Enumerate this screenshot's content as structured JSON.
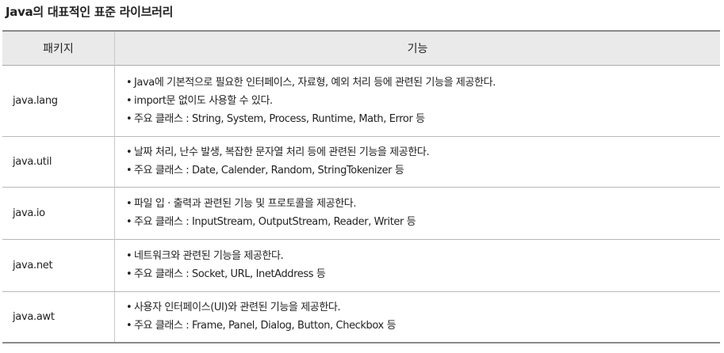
{
  "title": "Java의 대표적인 표준 라이브러리",
  "table": {
    "headers": [
      "패키지",
      "기능"
    ],
    "rows": [
      {
        "package": "java.lang",
        "lines": [
          "Java에 기본적으로 필요한 인터페이스, 자료형, 예외 처리 등에 관련된 기능을 제공한다.",
          "import문 없이도 사용할 수 있다.",
          "주요 클래스 : String, System, Process, Runtime, Math, Error 등"
        ]
      },
      {
        "package": "java.util",
        "lines": [
          "날짜 처리, 난수 발생, 복잡한 문자열 처리 등에 관련된 기능을 제공한다.",
          "주요 클래스 : Date, Calender, Random, StringTokenizer 등"
        ]
      },
      {
        "package": "java.io",
        "lines": [
          "파일 입 · 출력과 관련된 기능 및 프로토콜을 제공한다.",
          "주요 클래스 : InputStream, OutputStream, Reader, Writer 등"
        ]
      },
      {
        "package": "java.net",
        "lines": [
          "네트워크와 관련된 기능을 제공한다.",
          "주요 클래스 : Socket, URL, InetAddress 등"
        ]
      },
      {
        "package": "java.awt",
        "lines": [
          "사용자 인터페이스(UI)와 관련된 기능을 제공한다.",
          "주요 클래스 : Frame, Panel, Dialog, Button, Checkbox 등"
        ]
      }
    ]
  },
  "bullet": "•"
}
